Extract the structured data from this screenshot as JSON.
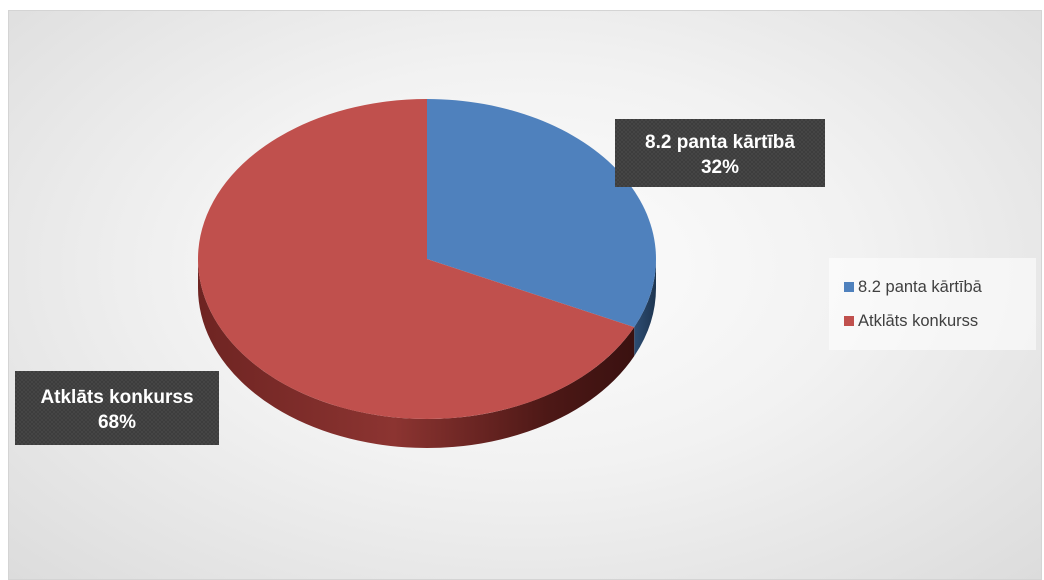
{
  "chart_data": {
    "type": "pie",
    "title": "",
    "categories": [
      "8.2 panta kārtībā",
      "Atklāts konkurss"
    ],
    "values": [
      32,
      68
    ],
    "unit": "%",
    "colors": [
      "#4f81bd",
      "#c0504d"
    ],
    "data_labels": [
      {
        "category": "8.2 panta kārtībā",
        "value": "32%"
      },
      {
        "category": "Atklāts konkurss",
        "value": "68%"
      }
    ],
    "legend": {
      "position": "right",
      "entries": [
        "8.2 panta kārtībā",
        "Atklāts konkurss"
      ]
    },
    "style": "3d"
  }
}
